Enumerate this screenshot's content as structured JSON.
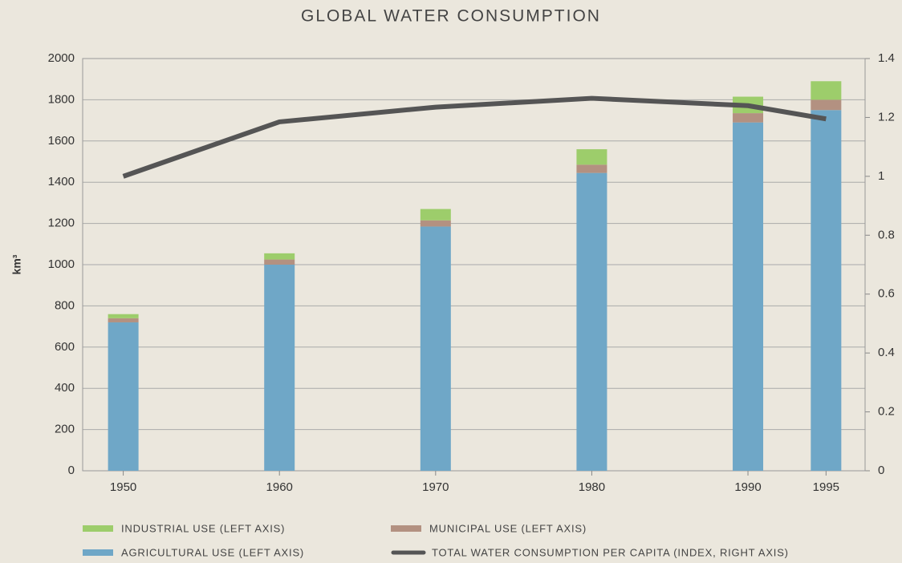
{
  "chart_data": {
    "type": "bar",
    "title": "GLOBAL WATER CONSUMPTION",
    "y_label": "km³",
    "x": [
      1950,
      1960,
      1970,
      1980,
      1990,
      1995
    ],
    "xlim": [
      1947.4,
      1997.5
    ],
    "xticks": [
      1950,
      1960,
      1970,
      1980,
      1990,
      1995
    ],
    "ylim": [
      0,
      2000
    ],
    "yticks": [
      0,
      200,
      400,
      600,
      800,
      1000,
      1200,
      1400,
      1600,
      1800,
      2000
    ],
    "y2lim": [
      0,
      1.4
    ],
    "y2ticks": [
      0,
      0.2,
      0.4,
      0.6,
      0.8,
      1,
      1.2,
      1.4
    ],
    "grid": true,
    "series": [
      {
        "name": "AGRICULTURAL USE (LEFT AXIS)",
        "color": "#6fa7c7",
        "values": [
          720,
          1000,
          1185,
          1445,
          1690,
          1750
        ]
      },
      {
        "name": "MUNICIPAL USE (LEFT AXIS)",
        "color": "#b39181",
        "values": [
          20,
          25,
          30,
          40,
          45,
          50
        ]
      },
      {
        "name": "INDUSTRIAL USE (LEFT AXIS)",
        "color": "#9dcd6b",
        "values": [
          20,
          30,
          55,
          75,
          80,
          90
        ]
      },
      {
        "name": "TOTAL WATER CONSUMPTION PER CAPITA (INDEX, RIGHT AXIS)",
        "color": "#555555",
        "type": "line",
        "axis": "y2",
        "values": [
          1.0,
          1.185,
          1.235,
          1.265,
          1.24,
          1.195
        ]
      }
    ]
  }
}
